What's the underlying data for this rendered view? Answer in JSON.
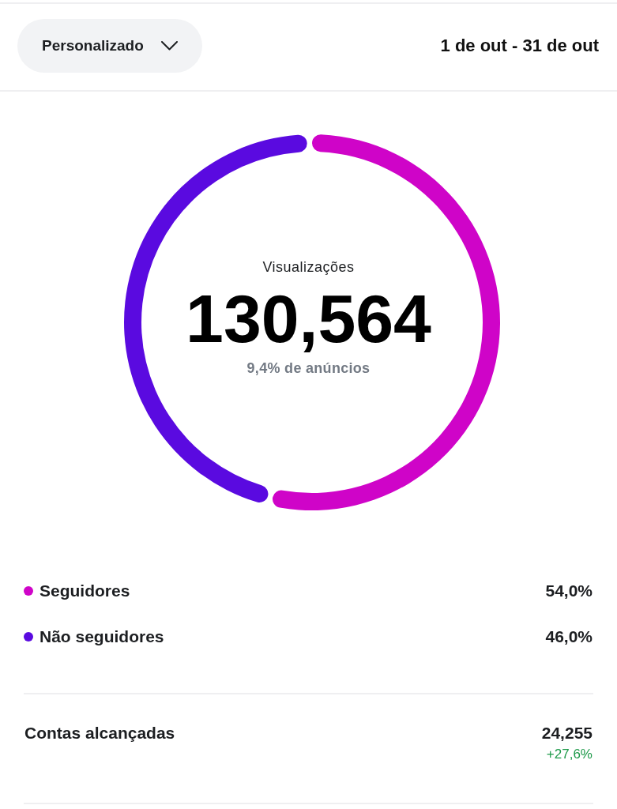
{
  "chart_data": {
    "type": "donut",
    "title": "Visualizações",
    "subtitle": "9,4% de anúncios",
    "categories": [
      "Seguidores",
      "Não seguidores"
    ],
    "values": [
      54.0,
      46.0
    ],
    "colors": [
      "#cf04c8",
      "#5a0ae0"
    ],
    "value_labels": [
      "54,0%",
      "46,0%"
    ],
    "legend": "bottom",
    "annotations": [
      "Personalizado",
      "1 de out - 31 de out",
      "130,564",
      "Contas alcançadas",
      "24,255",
      "+27,6%"
    ]
  }
}
